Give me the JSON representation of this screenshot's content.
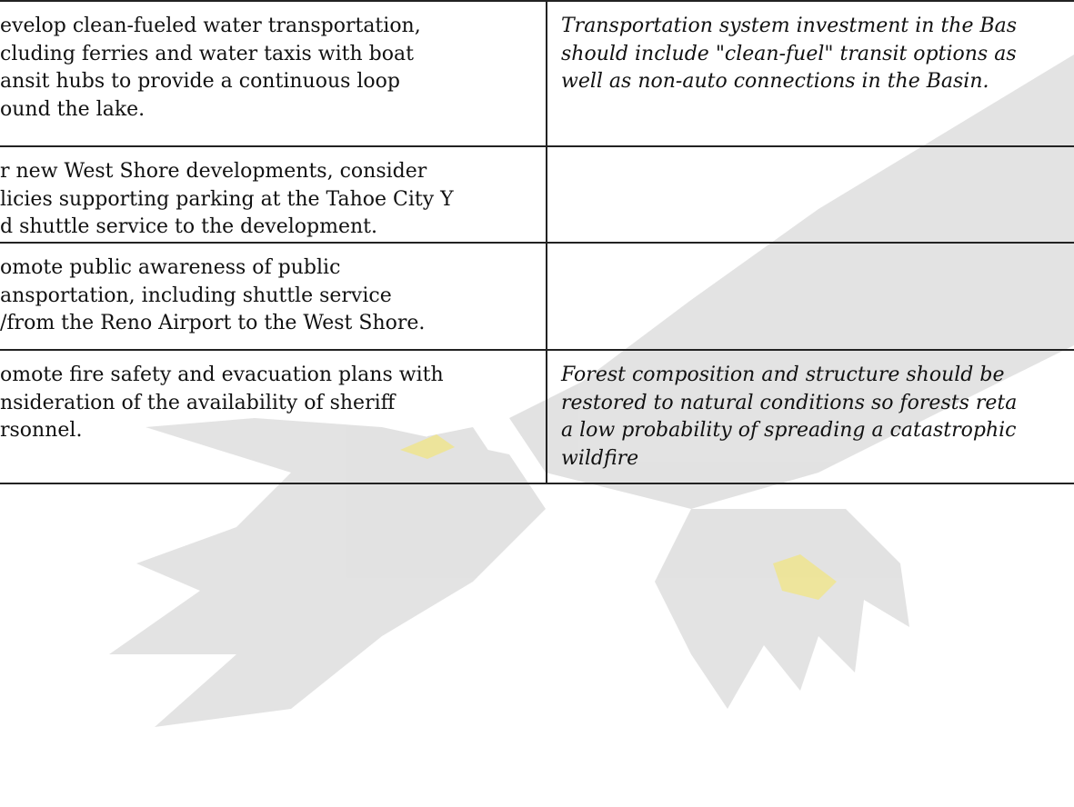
{
  "table": {
    "rows": [
      [
        [
          "evelop clean-fueled water transportation,",
          "cluding ferries and water taxis with boat",
          "ansit hubs to provide a continuous loop",
          "ound the lake."
        ],
        [
          "Transportation system investment in the Bas",
          "should include \"clean-fuel\" transit options as",
          "well as non-auto connections in the Basin."
        ]
      ],
      [
        [
          "r new West Shore developments, consider",
          "licies supporting parking at the Tahoe City Y",
          "d shuttle service to the development."
        ],
        []
      ],
      [
        [
          "omote public awareness of public",
          "ansportation, including shuttle service",
          "/from the Reno Airport to the West Shore."
        ],
        []
      ],
      [
        [
          "omote fire safety and evacuation plans with",
          "nsideration of the availability of sheriff",
          "rsonnel."
        ],
        [
          "Forest composition and structure should be",
          "restored to natural conditions so forests reta",
          "a low probability of spreading a catastrophic",
          "wildfire"
        ]
      ]
    ]
  }
}
